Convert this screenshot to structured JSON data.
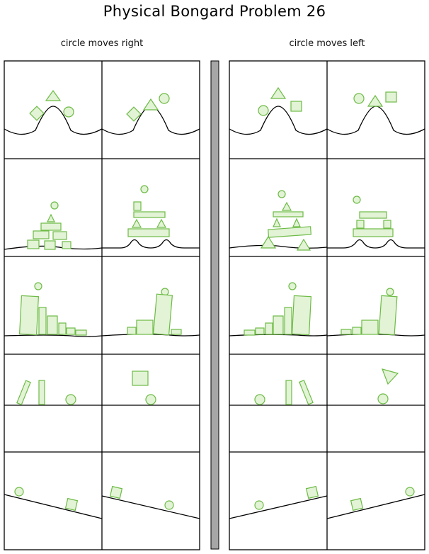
{
  "title": "Physical Bongard Problem 26",
  "left_label": "circle moves right",
  "right_label": "circle moves left",
  "colors": {
    "shape_fill": "#e2f3d6",
    "shape_stroke": "#6dbb45",
    "line": "#000000",
    "divider": "#a6a6a6"
  }
}
